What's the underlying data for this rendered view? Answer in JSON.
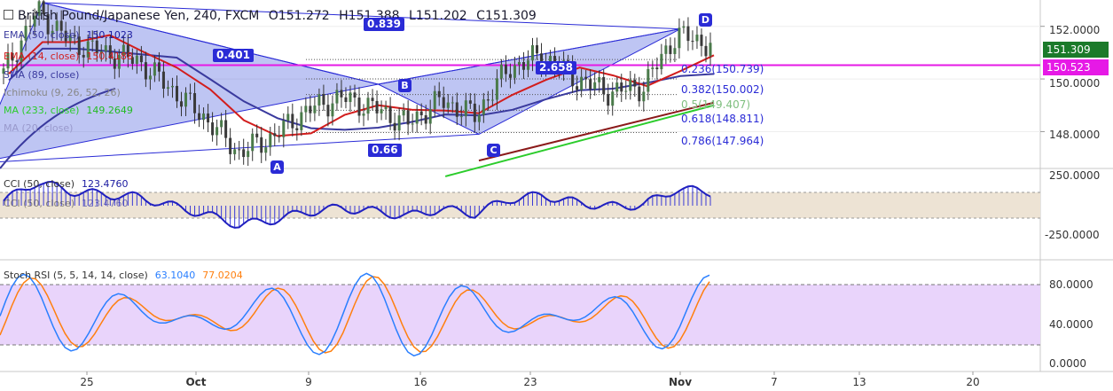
{
  "header": {
    "title": "British Pound/Japanese Yen, 240, FXCM",
    "open": "O151.272",
    "high": "H151.388",
    "low": "L151.202",
    "close": "C151.309"
  },
  "indicators": [
    {
      "label": "EMA (50, close)",
      "value": "150.1023",
      "color": "#3a3a9e",
      "value_color": "#1a1aa0"
    },
    {
      "label": "EMA (14, close)",
      "value": "150.4188",
      "color": "#d21d1d",
      "value_color": "#d21d1d"
    },
    {
      "label": "SMA (89, close)",
      "value": "",
      "color": "#3a3a9e",
      "value_color": "#3a3a9e"
    },
    {
      "label": "Ichimoku (9, 26, 52, 26)",
      "value": "",
      "color": "#888888",
      "value_color": "#888888"
    },
    {
      "label": "MA (233, close)",
      "value": "149.2649",
      "color": "#2bcc2b",
      "value_color": "#22bb22"
    },
    {
      "label": "MA (20, close)",
      "value": "",
      "color": "#9999cc",
      "value_color": "#9999cc"
    }
  ],
  "pattern_labels": {
    "A": "A",
    "B": "B",
    "C": "C",
    "D": "D",
    "xb_ratio": "0.401",
    "xd_ratio": "0.839",
    "ac_ratio": "0.66",
    "bd_ratio": "2.658"
  },
  "fib_levels": [
    {
      "label": "0.236(150.739)",
      "price": 150.739
    },
    {
      "label": "0.382(150.002)",
      "price": 150.002
    },
    {
      "label": "0.5(149.407)",
      "price": 149.407
    },
    {
      "label": "0.618(148.811)",
      "price": 148.811
    },
    {
      "label": "0.786(147.964)",
      "price": 147.964
    }
  ],
  "price_tags": [
    {
      "label": "151.309",
      "color": "#1b7a2a",
      "price": 151.309
    },
    {
      "label": "150.523",
      "color": "#e619e6",
      "price": 150.523
    }
  ],
  "horizontal_line": {
    "price": 150.523,
    "color": "#e619e6"
  },
  "cci": {
    "label": "CCI (50, close)",
    "value": "123.4760",
    "ticks": [
      "250.0000",
      "-250.0000"
    ]
  },
  "stoch_rsi": {
    "label": "Stoch RSI (5, 5, 14, 14, close)",
    "k_value": "63.1040",
    "d_value": "77.0204",
    "ticks": [
      "80.0000",
      "40.0000",
      "0.0000"
    ]
  },
  "chart_data": {
    "type": "line",
    "title": "British Pound/Japanese Yen, 240, FXCM",
    "x_ticks": [
      "25",
      "Oct",
      "9",
      "16",
      "23",
      "Nov",
      "7",
      "13",
      "20"
    ],
    "y_ticks": [
      "152.0000",
      "150.0000",
      "148.0000"
    ],
    "ylim": [
      146.6,
      153.0
    ],
    "x": [
      "Sep 21",
      "Sep 24",
      "Sep 26",
      "Sep 28",
      "Oct 1",
      "Oct 3",
      "Oct 5",
      "Oct 8",
      "Oct 9",
      "Oct 11",
      "Oct 13",
      "Oct 15",
      "Oct 17",
      "Oct 19",
      "Oct 21",
      "Oct 23",
      "Oct 25",
      "Oct 27",
      "Oct 29",
      "Oct 31",
      "Nov 1",
      "Nov 2"
    ],
    "series": [
      {
        "values": [
          150.2,
          152.6,
          151.4,
          151.0,
          150.7,
          149.6,
          148.5,
          147.2,
          147.8,
          148.8,
          149.3,
          148.9,
          148.3,
          149.2,
          148.6,
          150.4,
          150.9,
          150.0,
          149.5,
          149.7,
          151.7,
          151.3
        ]
      }
    ],
    "xabcd": {
      "X": {
        "x": "Sep 24",
        "price": 152.9
      },
      "A": {
        "x": "Oct 7",
        "price": 146.8
      },
      "B": {
        "x": "Oct 15",
        "price": 149.8
      },
      "C": {
        "x": "Oct 21",
        "price": 147.9
      },
      "D": {
        "x": "Nov 1",
        "price": 151.9
      }
    },
    "grid": true,
    "legend": "top-left"
  }
}
